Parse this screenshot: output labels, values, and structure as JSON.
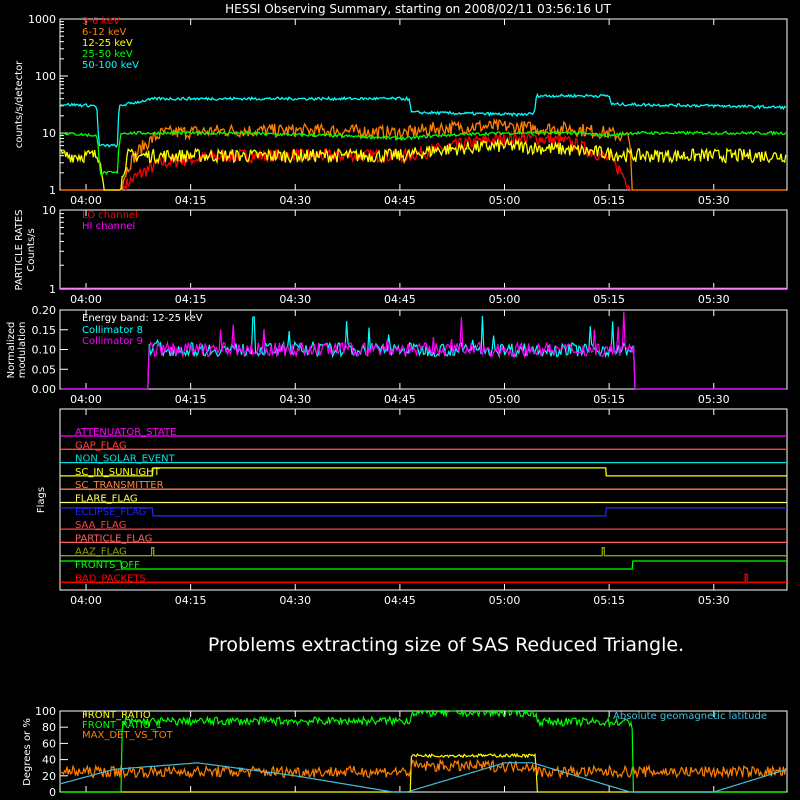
{
  "title": "HESSI Observing Summary, starting on 2008/02/11 03:56:16 UT",
  "time_ticks": [
    "04:00",
    "04:15",
    "04:30",
    "04:45",
    "05:00",
    "05:15",
    "05:30"
  ],
  "time_tick_minutes": [
    240,
    255,
    270,
    285,
    300,
    315,
    330
  ],
  "time_range_minutes": [
    236.27,
    340.5
  ],
  "message": "Problems extracting size of SAS Reduced Triangle.",
  "chart_data": [
    {
      "type": "line",
      "panel": "lightcurves",
      "ylabel": "counts/s/detector",
      "yscale": "log",
      "ylim": [
        1,
        1000
      ],
      "yticks": [
        "1",
        "10",
        "100",
        "1000"
      ],
      "legend_position": "top-left",
      "series": [
        {
          "name": "3-6 keV",
          "color": "#ff0000",
          "x": [
            236.3,
            242,
            242.1,
            245,
            245.1,
            251,
            260,
            275,
            286,
            290,
            296,
            300,
            305,
            309,
            312,
            315,
            318,
            318.2,
            340.5
          ],
          "y": [
            1,
            1,
            1,
            1,
            1,
            3,
            4,
            4,
            4,
            5,
            7,
            8,
            8,
            7,
            5,
            3.5,
            1,
            1,
            1
          ]
        },
        {
          "name": "6-12 keV",
          "color": "#ff8000",
          "x": [
            236.3,
            242,
            245,
            251,
            260,
            275,
            286,
            290,
            296,
            300,
            305,
            309,
            312,
            315,
            318,
            318.2,
            340.5
          ],
          "y": [
            1,
            1,
            1,
            10,
            11,
            11,
            10,
            12,
            13,
            13,
            12,
            12,
            11,
            10,
            8,
            1,
            1
          ]
        },
        {
          "name": "12-25 keV",
          "color": "#ffff00",
          "x": [
            236.3,
            242,
            242.5,
            245,
            246,
            260,
            275,
            286,
            290,
            300,
            310,
            318,
            330,
            340.5
          ],
          "y": [
            4,
            4,
            1,
            1,
            4,
            4,
            4,
            4,
            5,
            6,
            5,
            4,
            4,
            4
          ]
        },
        {
          "name": "25-50 keV",
          "color": "#00ff00",
          "x": [
            236.3,
            241.5,
            242,
            244.5,
            245,
            250,
            260,
            275,
            286,
            290,
            300,
            310,
            315,
            318,
            330,
            340.5
          ],
          "y": [
            10,
            9,
            2,
            2,
            10,
            10,
            10,
            9,
            8,
            9,
            10,
            10,
            9,
            10,
            10,
            10
          ]
        },
        {
          "name": "50-100 keV",
          "color": "#00ffff",
          "x": [
            236.3,
            241.5,
            241.8,
            244.5,
            244.8,
            250,
            286.3,
            286.6,
            302,
            304.3,
            304.6,
            315,
            315.3,
            330,
            340.5
          ],
          "y": [
            32,
            30,
            6,
            6,
            30,
            40,
            40,
            23,
            21,
            22,
            45,
            45,
            32,
            30,
            28
          ]
        }
      ]
    },
    {
      "type": "line",
      "panel": "particle_rates",
      "ylabel": "PARTICLE RATES Counts/s",
      "yscale": "log",
      "ylim": [
        1,
        10
      ],
      "yticks": [
        "1",
        "10"
      ],
      "series": [
        {
          "name": "LO channel",
          "color": "#ff0000",
          "x": [
            236.3,
            340.5
          ],
          "y": [
            1,
            1
          ]
        },
        {
          "name": "HI channel",
          "color": "#ff00ff",
          "x": [
            236.3,
            340.5
          ],
          "y": [
            1,
            1
          ]
        }
      ]
    },
    {
      "type": "line",
      "panel": "modulation",
      "ylabel": "Normalized modulation",
      "ylim": [
        0,
        0.2
      ],
      "yticks": [
        "0.00",
        "0.05",
        "0.10",
        "0.15",
        "0.20"
      ],
      "annotation": "Energy band: 12-25 keV",
      "series": [
        {
          "name": "Collimator 8",
          "color": "#00ffff",
          "x": [
            236.3,
            248.9,
            249,
            318.5,
            318.6,
            340.5
          ],
          "y": [
            0,
            0,
            0.1,
            0.1,
            0,
            0
          ]
        },
        {
          "name": "Collimator 9",
          "color": "#ff00ff",
          "x": [
            236.3,
            248.9,
            249,
            318.5,
            318.6,
            340.5
          ],
          "y": [
            0,
            0,
            0.1,
            0.1,
            0,
            0
          ]
        }
      ]
    },
    {
      "type": "line",
      "panel": "flags",
      "ylabel": "Flags",
      "series": [
        {
          "name": "ATTENUATOR_STATE",
          "color": "#ff00ff",
          "x": [
            236.3,
            340.5
          ],
          "y": [
            0,
            0
          ]
        },
        {
          "name": "GAP_FLAG",
          "color": "#ff4040",
          "x": [
            236.3,
            340.5
          ],
          "y": [
            0,
            0
          ]
        },
        {
          "name": "NON_SOLAR_EVENT",
          "color": "#00e0e0",
          "x": [
            236.3,
            340.5
          ],
          "y": [
            0,
            0
          ]
        },
        {
          "name": "SC_IN_SUNLIGHT",
          "color": "#ffff00",
          "x": [
            236.3,
            249.5,
            249.6,
            314.5,
            314.6,
            340.5
          ],
          "y": [
            0,
            0,
            1,
            1,
            0,
            0
          ]
        },
        {
          "name": "SC_TRANSMITTER",
          "color": "#ff8040",
          "x": [
            236.3,
            340.5
          ],
          "y": [
            0,
            0
          ]
        },
        {
          "name": "FLARE_FLAG",
          "color": "#ffff60",
          "x": [
            236.3,
            340.5
          ],
          "y": [
            0,
            0
          ]
        },
        {
          "name": "ECLIPSE_FLAG",
          "color": "#2020ff",
          "x": [
            236.3,
            249.5,
            249.6,
            314.5,
            314.6,
            340.5
          ],
          "y": [
            1,
            1,
            0,
            0,
            1,
            1
          ]
        },
        {
          "name": "SAA_FLAG",
          "color": "#ff4040",
          "x": [
            236.3,
            340.5
          ],
          "y": [
            0,
            0
          ]
        },
        {
          "name": "PARTICLE_FLAG",
          "color": "#ff6060",
          "x": [
            236.3,
            340.5
          ],
          "y": [
            0,
            0
          ]
        },
        {
          "name": "AAZ_FLAG",
          "color": "#90a000",
          "x": [
            236.3,
            249.4,
            249.4,
            249.7,
            249.7,
            314.0,
            314.0,
            314.3,
            314.3,
            340.5
          ],
          "y": [
            0,
            0,
            1,
            1,
            0,
            0,
            1,
            1,
            0,
            0
          ]
        },
        {
          "name": "FRONTS_OFF",
          "color": "#00ff00",
          "x": [
            236.3,
            245,
            245.1,
            318.3,
            318.4,
            340.5
          ],
          "y": [
            1,
            1,
            0,
            0,
            1,
            1
          ]
        },
        {
          "name": "BAD_PACKETS",
          "color": "#ff0000",
          "x": [
            236.3,
            334.5,
            334.5,
            334.8,
            334.8,
            340.5
          ],
          "y": [
            0,
            0,
            1,
            1,
            0,
            0
          ]
        }
      ]
    },
    {
      "type": "line",
      "panel": "ratios",
      "ylabel": "Degrees or %",
      "ylim": [
        0,
        100
      ],
      "yticks": [
        "0",
        "20",
        "40",
        "60",
        "80",
        "100"
      ],
      "series": [
        {
          "name": "FRONT_RATIO",
          "color": "#ffff00",
          "x": [
            236.3,
            286.5,
            286.6,
            304.5,
            304.6,
            340.5
          ],
          "y": [
            0,
            0,
            45,
            45,
            0,
            0
          ]
        },
        {
          "name": "FRONT_RATIO_1",
          "color": "#00ff00",
          "x": [
            236.3,
            245.1,
            245.2,
            286.5,
            286.6,
            304.5,
            304.6,
            318.3,
            318.4,
            340.5
          ],
          "y": [
            0,
            0,
            87,
            88,
            98,
            98,
            87,
            86,
            0,
            0
          ]
        },
        {
          "name": "MAX_DET_VS_TOT",
          "color": "#ff8000",
          "x": [
            236.3,
            250,
            286.5,
            286.6,
            304.5,
            304.6,
            340.5
          ],
          "y": [
            25,
            25,
            25,
            32,
            32,
            25,
            25
          ]
        },
        {
          "name": "Absolute geomagnetic latitude",
          "color": "#40c0e0",
          "x": [
            236.3,
            244,
            256,
            270,
            284,
            286,
            300,
            304,
            318,
            330,
            340.5
          ],
          "y": [
            10,
            28,
            36,
            20,
            0,
            0,
            36,
            36,
            0,
            0,
            28
          ]
        }
      ]
    }
  ]
}
